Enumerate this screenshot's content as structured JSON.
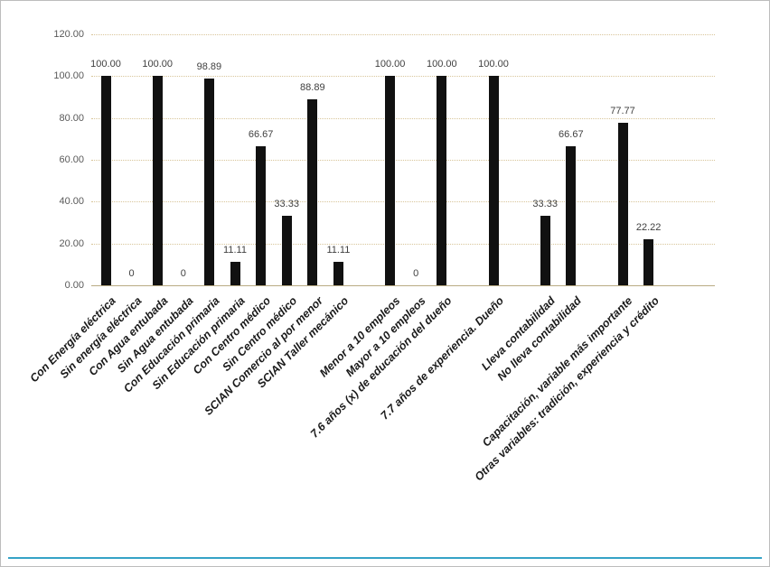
{
  "colors": {
    "bar": "#111111",
    "gridline": "#d8c59a",
    "figure_border": "#bdbdbd",
    "bottom_accent": "#35a3c6"
  },
  "chart_data": {
    "type": "bar",
    "title": "",
    "xlabel": "",
    "ylabel": "",
    "ylim": [
      0,
      120
    ],
    "grid": "horizontal-dotted",
    "legend": "none",
    "bar_color": "#111111",
    "yticks": [
      0,
      20,
      40,
      60,
      80,
      100,
      120
    ],
    "ytick_labels": [
      "0.00",
      "20.00",
      "40.00",
      "60.00",
      "80.00",
      "100.00",
      "120.00"
    ],
    "items": [
      {
        "label": "Con Energía eléctrica",
        "value": 100,
        "value_label": "100.00"
      },
      {
        "label": "Sin energía eléctrica",
        "value": 0,
        "value_label": "0"
      },
      {
        "label": "Con Agua entubada",
        "value": 100,
        "value_label": "100.00"
      },
      {
        "label": "Sin Agua entubada",
        "value": 0,
        "value_label": "0"
      },
      {
        "label": "Con Educación primaria",
        "value": 98.89,
        "value_label": "98.89"
      },
      {
        "label": "Sin Educación primaria",
        "value": 11.11,
        "value_label": "11.11"
      },
      {
        "label": "Con Centro médico",
        "value": 66.67,
        "value_label": "66.67"
      },
      {
        "label": "Sin Centro médico",
        "value": 33.33,
        "value_label": "33.33"
      },
      {
        "label": "SCIAN Comercio al por menor",
        "value": 88.89,
        "value_label": "88.89"
      },
      {
        "label": "SCIAN Taller mecánico",
        "value": 11.11,
        "value_label": "11.11"
      },
      {
        "spacer": true
      },
      {
        "label": "Menor a 10 empleos",
        "value": 100,
        "value_label": "100.00"
      },
      {
        "label": "Mayor a 10 empleos",
        "value": 0,
        "value_label": "0"
      },
      {
        "label": "7.6  años (x) de educación del dueño",
        "value": 100,
        "value_label": "100.00"
      },
      {
        "spacer": true
      },
      {
        "label": "7.7 años de experiencia. Dueño",
        "value": 100,
        "value_label": "100.00"
      },
      {
        "spacer": true
      },
      {
        "label": "Lleva contabilidad",
        "value": 33.33,
        "value_label": "33.33"
      },
      {
        "label": "No lleva contabilidad",
        "value": 66.67,
        "value_label": "66.67"
      },
      {
        "spacer": true
      },
      {
        "label": "Capacitación, variable más importante",
        "value": 77.77,
        "value_label": "77.77"
      },
      {
        "label": "Otras variables: tradición, experiencia y crédito",
        "value": 22.22,
        "value_label": "22.22"
      }
    ]
  }
}
